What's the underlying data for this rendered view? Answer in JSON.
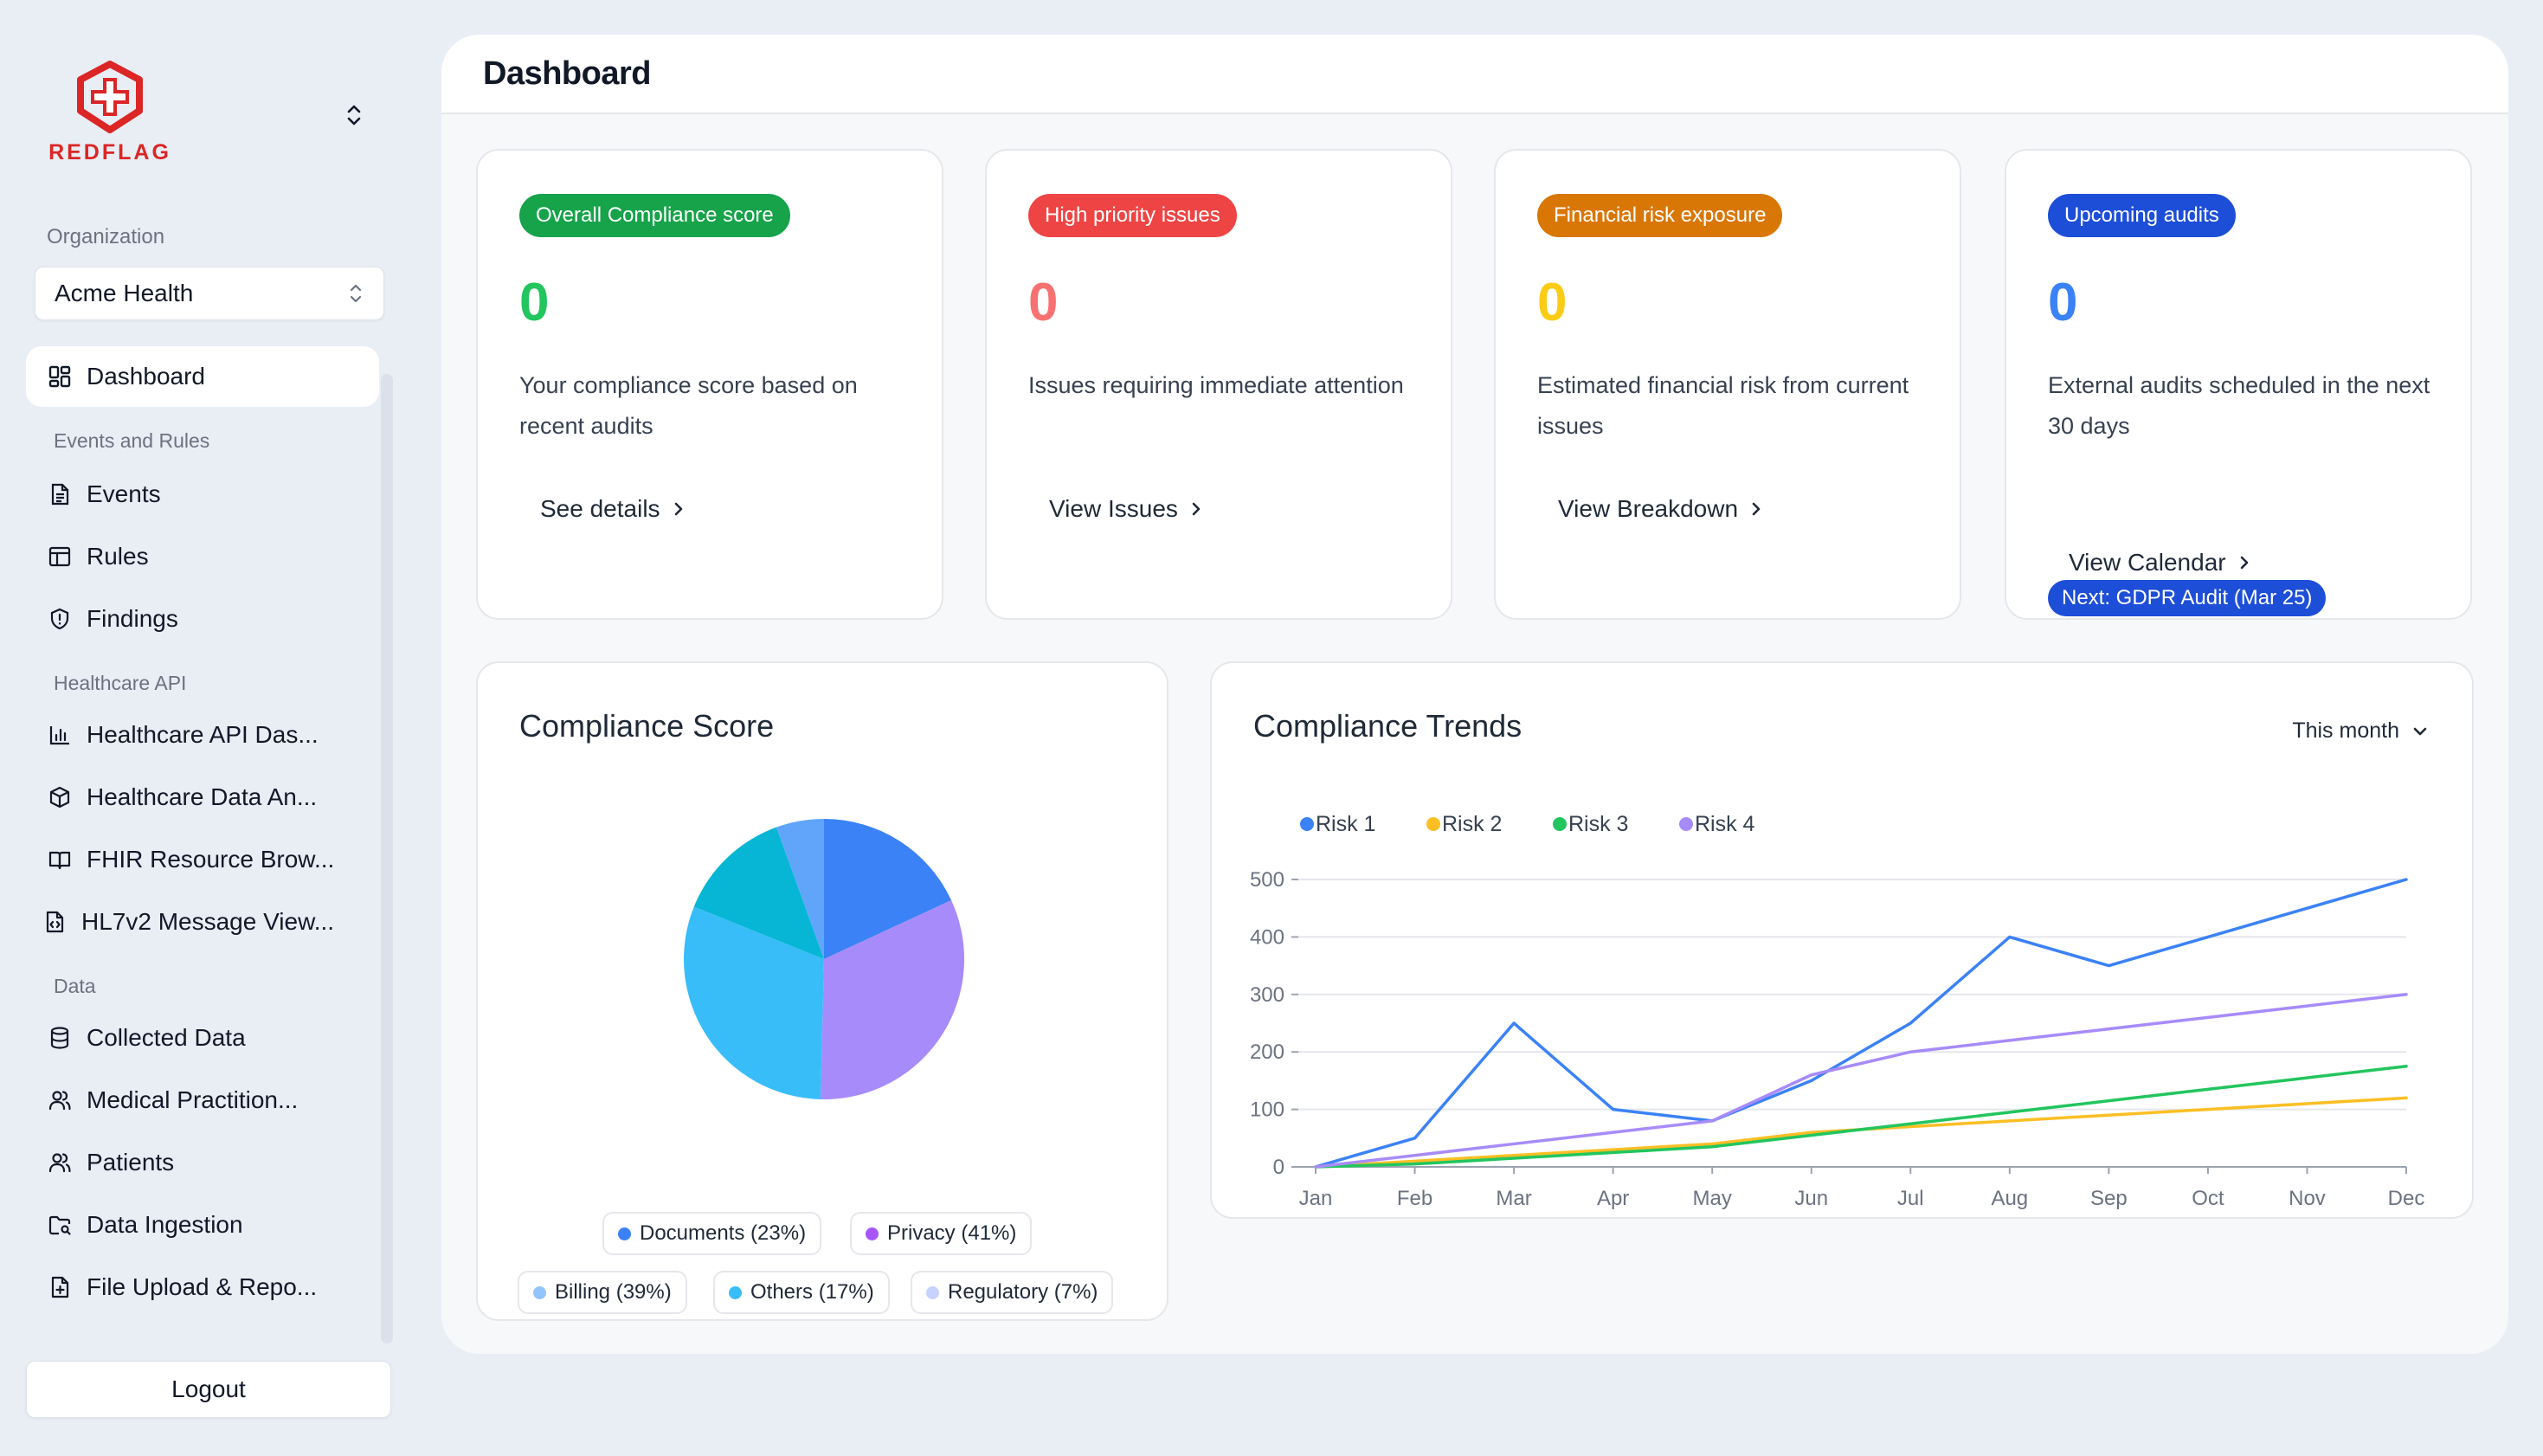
{
  "brand": {
    "name": "REDFLAG",
    "color": "#dc2626"
  },
  "organization": {
    "label": "Organization",
    "selected": "Acme Health"
  },
  "nav": {
    "dashboard": "Dashboard",
    "section_events": "Events and Rules",
    "events": "Events",
    "rules": "Rules",
    "findings": "Findings",
    "section_api": "Healthcare API",
    "api_dashboard": "Healthcare API Das...",
    "data_analytics": "Healthcare Data An...",
    "fhir": "FHIR Resource Brow...",
    "hl7": "HL7v2 Message View...",
    "section_data": "Data",
    "collected": "Collected Data",
    "practitioners": "Medical Practition...",
    "patients": "Patients",
    "ingestion": "Data Ingestion",
    "upload": "File Upload & Repo..."
  },
  "logout_label": "Logout",
  "page_title": "Dashboard",
  "stats": [
    {
      "badge": "Overall Compliance score",
      "badge_color": "#16a34a",
      "value": "0",
      "value_color": "#22c55e",
      "desc": "Your compliance score based on recent audits",
      "link": "See details"
    },
    {
      "badge": "High priority issues",
      "badge_color": "#ef4444",
      "value": "0",
      "value_color": "#f87171",
      "desc": "Issues requiring immediate attention",
      "link": "View Issues"
    },
    {
      "badge": "Financial risk exposure",
      "badge_color": "#d97706",
      "value": "0",
      "value_color": "#facc15",
      "desc": "Estimated financial risk from current issues",
      "link": "View Breakdown"
    },
    {
      "badge": "Upcoming audits",
      "badge_color": "#1d4ed8",
      "value": "0",
      "value_color": "#3b82f6",
      "desc": "External audits scheduled in the next 30 days",
      "link": "View Calendar",
      "next": "Next: GDPR Audit (Mar 25)"
    }
  ],
  "compliance_score": {
    "title": "Compliance Score",
    "legend": [
      {
        "label": "Documents (23%)",
        "color": "#3b82f6"
      },
      {
        "label": "Privacy (41%)",
        "color": "#a855f7"
      },
      {
        "label": "Billing (39%)",
        "color": "#93c5fd"
      },
      {
        "label": "Others (17%)",
        "color": "#38bdf8"
      },
      {
        "label": "Regulatory (7%)",
        "color": "#c7d2fe"
      }
    ]
  },
  "trends": {
    "title": "Compliance Trends",
    "range": "This month"
  },
  "chart_data": [
    {
      "type": "pie",
      "slices": [
        {
          "label": "Documents",
          "value": 23,
          "color": "#3b82f6"
        },
        {
          "label": "Privacy",
          "value": 41,
          "color": "#a78bfa"
        },
        {
          "label": "Billing",
          "value": 39,
          "color": "#38bdf8"
        },
        {
          "label": "Others",
          "value": 17,
          "color": "#06b6d4"
        },
        {
          "label": "Regulatory",
          "value": 7,
          "color": "#60a5fa"
        }
      ]
    },
    {
      "type": "line",
      "categories": [
        "Jan",
        "Feb",
        "Mar",
        "Apr",
        "May",
        "Jun",
        "Jul",
        "Aug",
        "Sep",
        "Oct",
        "Nov",
        "Dec"
      ],
      "ylim": [
        0,
        500
      ],
      "yticks": [
        0,
        100,
        200,
        300,
        400,
        500
      ],
      "grid": true,
      "legend": "top-left",
      "series": [
        {
          "name": "Risk 1",
          "color": "#3b82f6",
          "values": [
            0,
            50,
            250,
            100,
            80,
            150,
            250,
            400,
            350,
            400,
            450,
            500
          ]
        },
        {
          "name": "Risk 2",
          "color": "#fbbf24",
          "values": [
            0,
            10,
            20,
            30,
            40,
            60,
            70,
            80,
            90,
            100,
            110,
            120
          ]
        },
        {
          "name": "Risk 3",
          "color": "#22c55e",
          "values": [
            0,
            5,
            15,
            25,
            35,
            55,
            75,
            95,
            115,
            135,
            155,
            175
          ]
        },
        {
          "name": "Risk 4",
          "color": "#a78bfa",
          "values": [
            0,
            20,
            40,
            60,
            80,
            160,
            200,
            220,
            240,
            260,
            280,
            300
          ]
        }
      ]
    }
  ]
}
